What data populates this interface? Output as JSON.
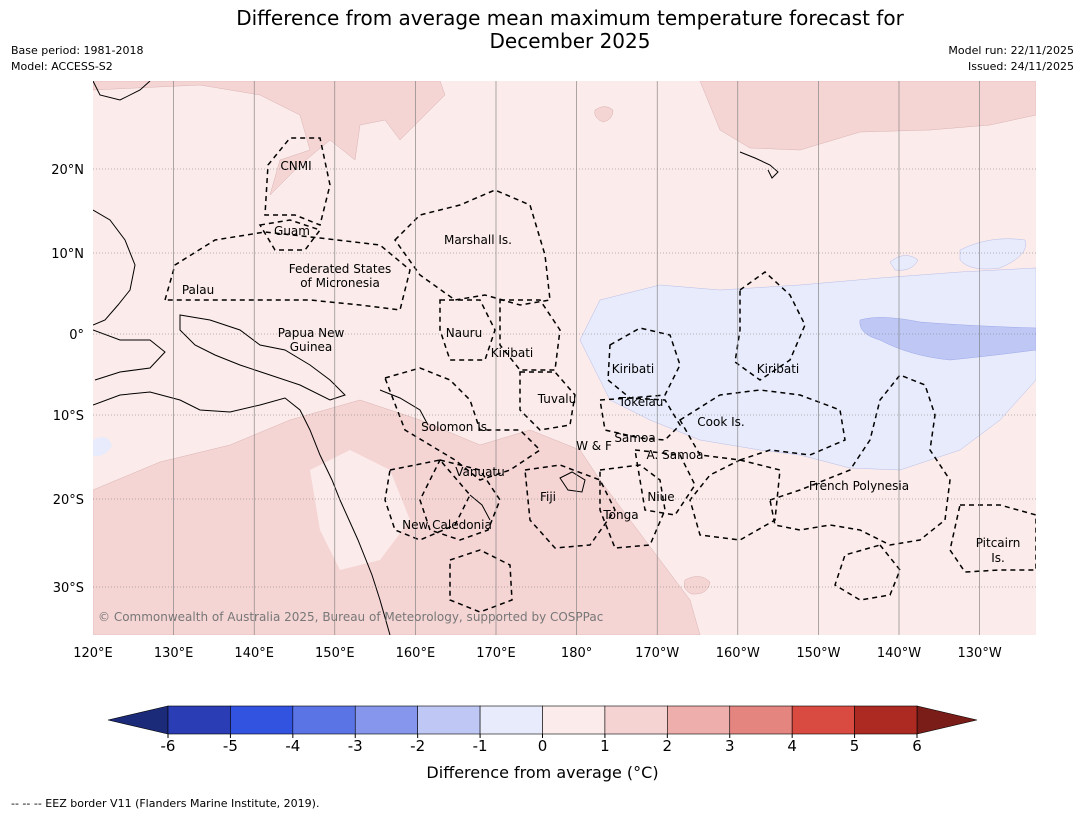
{
  "title_line1": "Difference from average mean maximum temperature forecast for",
  "title_line2": "December 2025",
  "base_period": "Base period: 1981-2018",
  "model": "Model: ACCESS-S2",
  "model_run": "Model run: 22/11/2025",
  "issued": "Issued: 24/11/2025",
  "copyright": "© Commonwealth of Australia 2025, Bureau of Meteorology, supported by COSPPac",
  "lon_ticks": [
    "120°E",
    "130°E",
    "140°E",
    "150°E",
    "160°E",
    "170°E",
    "180°",
    "170°W",
    "160°W",
    "150°W",
    "140°W",
    "130°W"
  ],
  "lat_ticks": [
    "20°N",
    "10°N",
    "0°",
    "10°S",
    "20°S",
    "30°S"
  ],
  "region_labels": [
    "CNMI",
    "Guam",
    "Marshall Is.",
    "Palau",
    "Federated States",
    "of Micronesia",
    "Papua New",
    "Guinea",
    "Nauru",
    "Kiribati",
    "Kiribati",
    "Kiribati",
    "Tuvalu",
    "Tokelau",
    "Cook Is.",
    "Solomon Is.",
    "Samoa",
    "W & F",
    "A. Samoa",
    "Vanuatu",
    "Fiji",
    "Niue",
    "French Polynesia",
    "Tonga",
    "New Caledonia",
    "Pitcairn",
    "Is."
  ],
  "colorbar": {
    "ticks": [
      "-6",
      "-5",
      "-4",
      "-3",
      "-2",
      "-1",
      "0",
      "1",
      "2",
      "3",
      "4",
      "5",
      "6"
    ],
    "colors": [
      "#2a3db5",
      "#3252e0",
      "#5a74e6",
      "#8596ec",
      "#bfc8f4",
      "#e8ebfb",
      "#fbebea",
      "#f6d3d3",
      "#eeaeab",
      "#e58580",
      "#d94a40",
      "#ad2a22"
    ],
    "under_color": "#1c2a7a",
    "over_color": "#7a1c18",
    "label": "Difference from average (°C)"
  },
  "legend_text": "-- -- -- EEZ border V11 (Flanders Marine Institute, 2019).",
  "colors": {
    "background_field": "#fbebea",
    "warm_field": "#f5d5d4",
    "cool_field": "#e8ebfb",
    "cooler_field": "#bfc8f4"
  }
}
